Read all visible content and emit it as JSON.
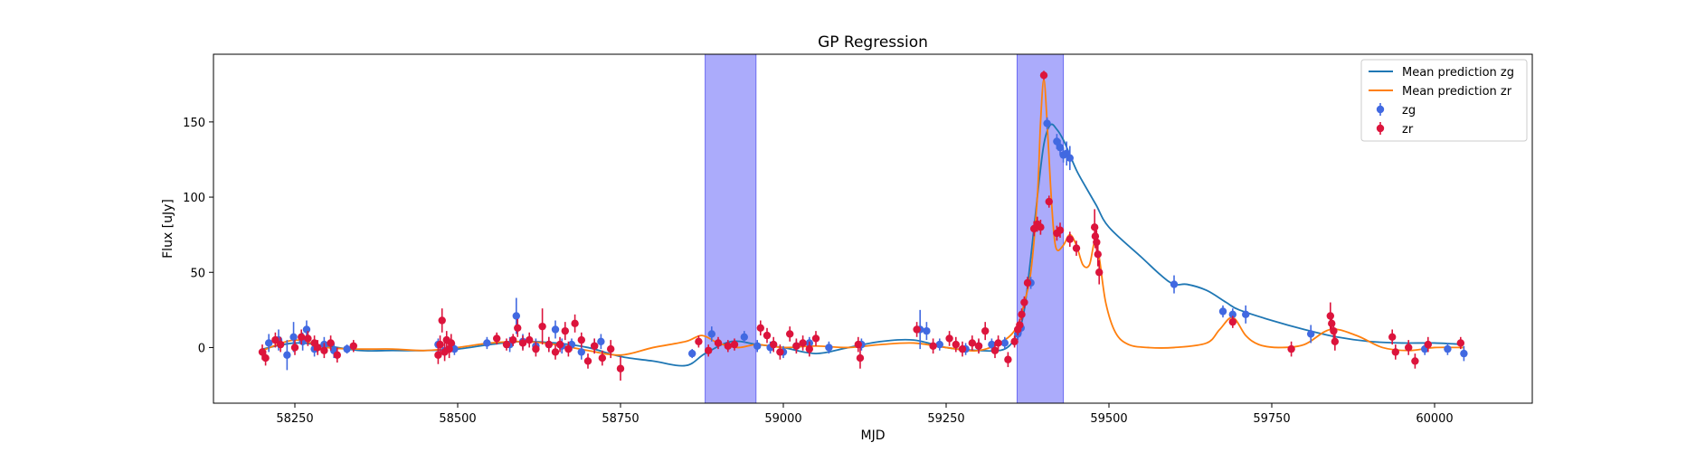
{
  "chart_data": {
    "type": "scatter",
    "title": "GP Regression",
    "xlabel": "MJD",
    "ylabel": "Flux [uJy]",
    "xlim": [
      58125,
      60150
    ],
    "ylim": [
      -37,
      195
    ],
    "xticks": [
      58250,
      58500,
      58750,
      59000,
      59250,
      59500,
      59750,
      60000
    ],
    "yticks": [
      0,
      50,
      100,
      150
    ],
    "xtick_labels": [
      "58250",
      "58500",
      "58750",
      "59000",
      "59250",
      "59500",
      "59750",
      "60000"
    ],
    "ytick_labels": [
      "0",
      "50",
      "100",
      "150"
    ],
    "grid": false,
    "legend_position": "upper right",
    "shaded_regions": [
      {
        "x0": 58880,
        "x1": 58958,
        "color": "#a6a6fb"
      },
      {
        "x0": 59359,
        "x1": 59430,
        "color": "#a6a6fb"
      }
    ],
    "series": [
      {
        "name": "Mean prediction zg",
        "kind": "line",
        "color": "#1f77b4",
        "x": [
          58200,
          58250,
          58300,
          58350,
          58400,
          58450,
          58500,
          58550,
          58600,
          58650,
          58700,
          58750,
          58800,
          58850,
          58880,
          58920,
          58960,
          59000,
          59050,
          59100,
          59150,
          59200,
          59250,
          59300,
          59340,
          59360,
          59370,
          59380,
          59390,
          59400,
          59410,
          59420,
          59430,
          59440,
          59450,
          59460,
          59480,
          59500,
          59550,
          59580,
          59600,
          59620,
          59650,
          59680,
          59700,
          59750,
          59800,
          59850,
          59900,
          59950,
          60000,
          60045
        ],
        "y": [
          -1,
          3,
          1,
          -2,
          -2,
          -2,
          -1,
          2,
          4,
          3,
          0,
          -6,
          -9,
          -12,
          -4,
          4,
          2,
          0,
          -4,
          0,
          4,
          5,
          0,
          -2,
          -1,
          10,
          25,
          60,
          100,
          135,
          148,
          145,
          138,
          128,
          118,
          110,
          95,
          80,
          60,
          48,
          42,
          42,
          38,
          30,
          25,
          18,
          12,
          7,
          4,
          3,
          3,
          2
        ]
      },
      {
        "name": "Mean prediction zr",
        "kind": "line",
        "color": "#ff7f0e",
        "x": [
          58200,
          58250,
          58300,
          58350,
          58400,
          58450,
          58500,
          58550,
          58600,
          58650,
          58700,
          58750,
          58800,
          58850,
          58875,
          58900,
          58930,
          58960,
          59000,
          59050,
          59100,
          59150,
          59200,
          59250,
          59300,
          59340,
          59360,
          59370,
          59380,
          59390,
          59395,
          59400,
          59405,
          59410,
          59415,
          59420,
          59430,
          59440,
          59450,
          59460,
          59470,
          59478,
          59485,
          59495,
          59510,
          59530,
          59560,
          59600,
          59650,
          59670,
          59690,
          59710,
          59730,
          59760,
          59800,
          59840,
          59880,
          59920,
          59960,
          60000,
          60045
        ],
        "y": [
          -2,
          5,
          0,
          -1,
          -1,
          -2,
          0,
          3,
          4,
          2,
          -2,
          -5,
          0,
          4,
          8,
          3,
          0,
          2,
          0,
          1,
          0,
          2,
          3,
          0,
          -2,
          5,
          15,
          30,
          50,
          100,
          150,
          178,
          150,
          110,
          78,
          65,
          68,
          75,
          68,
          55,
          55,
          70,
          60,
          30,
          10,
          2,
          0,
          0,
          3,
          12,
          20,
          8,
          2,
          0,
          2,
          12,
          8,
          0,
          -2,
          0,
          0
        ]
      },
      {
        "name": "zg",
        "kind": "errorbar",
        "color": "#4169e1",
        "x": [
          58210,
          58225,
          58238,
          58248,
          58262,
          58268,
          58280,
          58295,
          58310,
          58330,
          58470,
          58480,
          58495,
          58545,
          58580,
          58590,
          58600,
          58620,
          58640,
          58650,
          58660,
          58675,
          58690,
          58710,
          58720,
          58860,
          58890,
          58940,
          58960,
          58980,
          59000,
          59020,
          59040,
          59070,
          59120,
          59210,
          59220,
          59240,
          59280,
          59300,
          59320,
          59340,
          59360,
          59365,
          59380,
          59405,
          59420,
          59425,
          59430,
          59435,
          59440,
          59600,
          59675,
          59690,
          59710,
          59810,
          59985,
          60020,
          60045
        ],
        "y": [
          3,
          5,
          -5,
          7,
          4,
          12,
          -1,
          2,
          -2,
          -1,
          2,
          -2,
          -1,
          3,
          2,
          21,
          4,
          1,
          2,
          12,
          1,
          2,
          -3,
          1,
          4,
          -4,
          9,
          7,
          1,
          0,
          -3,
          1,
          3,
          0,
          2,
          12,
          11,
          2,
          -1,
          1,
          2,
          3,
          9,
          13,
          43,
          149,
          137,
          133,
          128,
          129,
          126,
          42,
          24,
          22,
          22,
          9,
          -1,
          -1,
          -4
        ],
        "yerr": [
          6,
          7,
          10,
          10,
          6,
          6,
          5,
          5,
          5,
          3,
          4,
          4,
          4,
          4,
          5,
          12,
          5,
          5,
          5,
          6,
          5,
          4,
          5,
          5,
          5,
          3,
          5,
          4,
          4,
          4,
          4,
          4,
          4,
          4,
          4,
          13,
          6,
          4,
          4,
          4,
          4,
          4,
          4,
          4,
          4,
          4,
          5,
          5,
          5,
          8,
          8,
          6,
          4,
          4,
          6,
          6,
          4,
          4,
          5
        ]
      },
      {
        "name": "zr",
        "kind": "errorbar",
        "color": "#dc143c",
        "x": [
          58200,
          58205,
          58220,
          58228,
          58250,
          58260,
          58270,
          58280,
          58285,
          58295,
          58305,
          58315,
          58340,
          58470,
          58473,
          58476,
          58480,
          58483,
          58487,
          58490,
          58560,
          58575,
          58585,
          58592,
          58600,
          58610,
          58620,
          58630,
          58640,
          58650,
          58657,
          58665,
          58670,
          58680,
          58690,
          58700,
          58710,
          58722,
          58735,
          58750,
          58870,
          58885,
          58900,
          58915,
          58925,
          58965,
          58975,
          58985,
          58995,
          59010,
          59020,
          59030,
          59040,
          59050,
          59115,
          59118,
          59205,
          59230,
          59255,
          59265,
          59275,
          59290,
          59300,
          59310,
          59325,
          59330,
          59345,
          59355,
          59360,
          59363,
          59366,
          59370,
          59375,
          59385,
          59390,
          59395,
          59400,
          59408,
          59420,
          59425,
          59440,
          59450,
          59478,
          59479,
          59481,
          59483,
          59485,
          59690,
          59780,
          59840,
          59842,
          59845,
          59847,
          59935,
          59940,
          59960,
          59970,
          59990,
          60040
        ],
        "y": [
          -3,
          -7,
          5,
          2,
          0,
          7,
          6,
          3,
          0,
          -2,
          3,
          -5,
          1,
          -5,
          2,
          18,
          -3,
          5,
          -1,
          3,
          6,
          2,
          5,
          13,
          3,
          5,
          -1,
          14,
          2,
          -3,
          2,
          11,
          -1,
          16,
          5,
          -9,
          1,
          -7,
          -1,
          -14,
          4,
          -2,
          3,
          1,
          2,
          13,
          8,
          2,
          -3,
          9,
          1,
          3,
          -1,
          6,
          2,
          -7,
          12,
          1,
          6,
          2,
          -1,
          3,
          1,
          11,
          -2,
          3,
          -8,
          4,
          12,
          15,
          22,
          30,
          43,
          79,
          82,
          80,
          181,
          97,
          76,
          78,
          72,
          66,
          80,
          74,
          70,
          62,
          50,
          17,
          -1,
          21,
          16,
          11,
          4,
          7,
          -3,
          0,
          -9,
          2,
          3
        ],
        "yerr": [
          5,
          5,
          5,
          5,
          5,
          5,
          5,
          5,
          5,
          5,
          5,
          5,
          4,
          6,
          6,
          8,
          6,
          6,
          6,
          6,
          4,
          4,
          4,
          6,
          5,
          5,
          5,
          12,
          5,
          5,
          5,
          6,
          5,
          6,
          5,
          5,
          5,
          5,
          6,
          8,
          4,
          4,
          4,
          4,
          4,
          5,
          5,
          5,
          5,
          5,
          5,
          5,
          5,
          5,
          5,
          7,
          5,
          5,
          5,
          5,
          5,
          5,
          5,
          6,
          5,
          5,
          5,
          4,
          4,
          4,
          4,
          4,
          4,
          5,
          5,
          5,
          3,
          4,
          5,
          5,
          5,
          5,
          12,
          8,
          8,
          8,
          8,
          4,
          5,
          9,
          6,
          6,
          6,
          5,
          5,
          5,
          5,
          5,
          4
        ]
      }
    ]
  }
}
